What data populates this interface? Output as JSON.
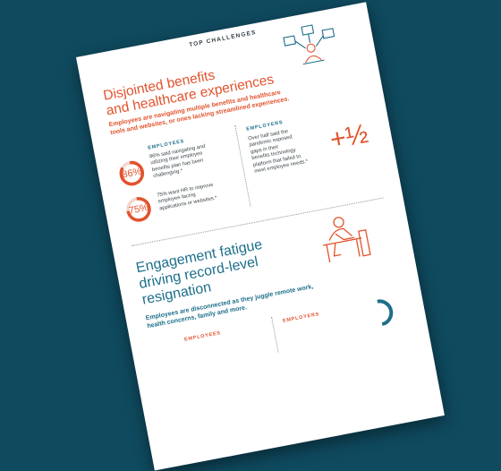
{
  "header": {
    "label": "TOP CHALLENGES"
  },
  "section1": {
    "title_line1": "Disjointed benefits",
    "title_line2": "and healthcare experiences",
    "subtitle_line1": "Employees are navigating multiple benefits and healthcare",
    "subtitle_line2": "tools and websites, or ones lacking streamlined experiences.",
    "employees_heading": "EMPLOYEES",
    "stat1": {
      "value": "86%",
      "percent": 86,
      "text": [
        "86% said navigating and",
        "utilizing their employee",
        "benefits plan has been",
        "challenging.*"
      ]
    },
    "stat2": {
      "value": "75%",
      "percent": 75,
      "text": [
        "75% want HR to improve",
        "employee-facing",
        "applications or websites.*"
      ]
    },
    "employers_heading": "EMPLOYERS",
    "employers_text": [
      "Over half said the",
      "pandemic exposed",
      "gaps in their",
      "benefits technology",
      "platform that failed to",
      "meet employee needs.*"
    ],
    "big_stat": "+½"
  },
  "section2": {
    "title_line1": "Engagement fatigue",
    "title_line2": "driving record-level",
    "title_line3": "resignation",
    "subtitle_line1": "Employees are disconnected as they juggle remote work,",
    "subtitle_line2": "health concerns, family and more.",
    "employees_heading": "EMPLOYEES",
    "employers_heading": "EMPLOYERS"
  },
  "colors": {
    "background": "#0f4a5f",
    "accent_orange": "#e2532d",
    "accent_teal": "#1d6f8a",
    "donut_track": "#f3d5cc"
  },
  "icons": [
    "people-connections-icon",
    "person-at-desk-icon"
  ]
}
